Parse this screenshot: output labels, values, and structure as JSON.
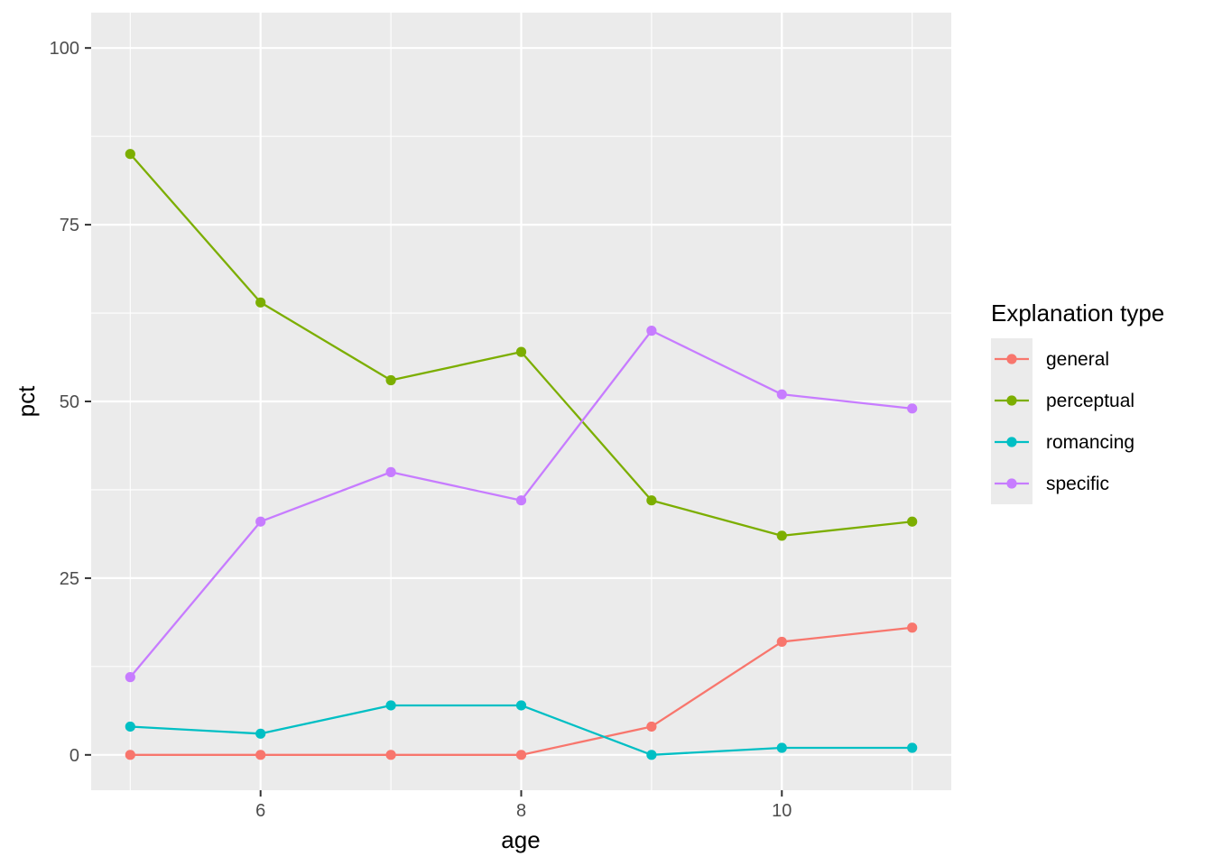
{
  "chart_data": {
    "type": "line",
    "xlabel": "age",
    "ylabel": "pct",
    "xlim": [
      4.7,
      11.3
    ],
    "ylim": [
      -5,
      105
    ],
    "x_ticks": [
      6,
      8,
      10
    ],
    "y_ticks": [
      0,
      25,
      50,
      75,
      100
    ],
    "grid": true,
    "legend": {
      "title": "Explanation type",
      "placement": "right"
    },
    "x": [
      5,
      6,
      7,
      8,
      9,
      10,
      11
    ],
    "series": [
      {
        "name": "general",
        "color": "#F8766D",
        "values": [
          0,
          0,
          0,
          0,
          4,
          16,
          18
        ]
      },
      {
        "name": "perceptual",
        "color": "#7CAE00",
        "values": [
          85,
          64,
          53,
          57,
          36,
          31,
          33
        ]
      },
      {
        "name": "romancing",
        "color": "#00BFC4",
        "values": [
          4,
          3,
          7,
          7,
          0,
          1,
          1
        ]
      },
      {
        "name": "specific",
        "color": "#C77CFF",
        "values": [
          11,
          33,
          40,
          36,
          60,
          51,
          49
        ]
      }
    ],
    "panel_background": "#EBEBEB",
    "grid_color": "#FFFFFF"
  }
}
